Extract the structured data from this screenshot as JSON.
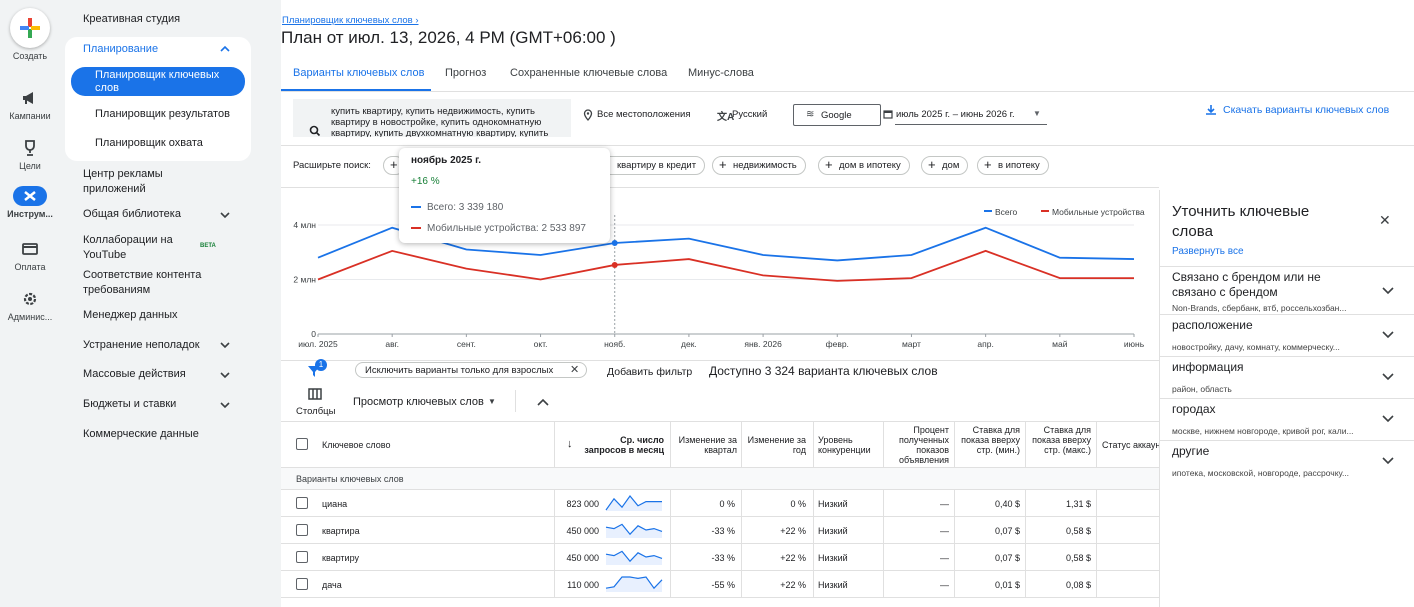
{
  "rail": [
    {
      "label": "Создать",
      "icon": "plus-icon"
    },
    {
      "label": "Кампании",
      "icon": "megaphone-icon"
    },
    {
      "label": "Цели",
      "icon": "trophy-icon"
    },
    {
      "label": "Инструм...",
      "icon": "tools-icon"
    },
    {
      "label": "Оплата",
      "icon": "card-icon"
    },
    {
      "label": "Админис...",
      "icon": "gear-icon"
    }
  ],
  "nav": {
    "creative": "Креативная студия",
    "planning": "Планирование",
    "planner": "Планировщик ключевых слов",
    "results": "Планировщик результатов",
    "reach": "Планировщик охвата",
    "app_center": "Центр рекламы приложений",
    "shared_lib": "Общая библиотека",
    "youtube": "Коллаборации на YouTube",
    "beta": "BETA",
    "compliance": "Соответствие контента требованиям",
    "data_mgr": "Менеджер данных",
    "troubleshoot": "Устранение неполадок",
    "bulk": "Массовые действия",
    "budgets": "Бюджеты и ставки",
    "commercial": "Коммерческие данные"
  },
  "header": {
    "breadcrumb": "Планировщик ключевых слов ›",
    "title": "План от июл. 13, 2026, 4 PM (GMT+06:00 )"
  },
  "tabs": [
    "Варианты ключевых слов",
    "Прогноз",
    "Сохраненные ключевые слова",
    "Минус-слова"
  ],
  "filters": {
    "search_text": "купить квартиру, купить недвижимость, купить квартиру в новостройке, купить однокомнатную квартиру, купить двухкомнатную квартиру, купить",
    "location": "Все местоположения",
    "language": "Русский",
    "network": "Google",
    "dates": "июль 2025 г. – июнь 2026 г.",
    "download": "Скачать варианты ключевых слов"
  },
  "expand": {
    "label": "Расширьте поиск:",
    "pills": [
      "квартиру в кредит",
      "недвижимость",
      "дом в ипотеку",
      "дом",
      "в ипотеку"
    ]
  },
  "tooltip": {
    "month": "ноябрь 2025 г.",
    "change": "+16 %",
    "total": "Всего: 3 339 180",
    "mobile": "Мобильные устройства: 2 533 897"
  },
  "chart_data": {
    "type": "line",
    "categories": [
      "июл. 2025",
      "авг.",
      "сент.",
      "окт.",
      "нояб.",
      "дек.",
      "янв. 2026",
      "февр.",
      "март",
      "апр.",
      "май",
      "июнь"
    ],
    "series": [
      {
        "name": "Всего",
        "color": "#1a73e8",
        "values": [
          2800000,
          3900000,
          3100000,
          2900000,
          3339180,
          3500000,
          2900000,
          2700000,
          2900000,
          3900000,
          2800000,
          2750000
        ]
      },
      {
        "name": "Мобильные устройства",
        "color": "#d93025",
        "values": [
          2000000,
          3050000,
          2400000,
          2000000,
          2533897,
          2750000,
          2150000,
          1950000,
          2050000,
          3050000,
          2050000,
          2050000
        ]
      }
    ],
    "yticks": [
      {
        "v": 0,
        "l": "0"
      },
      {
        "v": 2000000,
        "l": "2 млн"
      },
      {
        "v": 4000000,
        "l": "4 млн"
      }
    ],
    "ylim": [
      0,
      4000000
    ],
    "legend": "top-right",
    "grid": true
  },
  "toolbar": {
    "badge": "1",
    "exclude": "Исключить варианты только для взрослых",
    "add_filter": "Добавить фильтр",
    "available": "Доступно 3 324 варианта ключевых слов",
    "columns": "Столбцы",
    "view": "Просмотр ключевых слов"
  },
  "table": {
    "headers": {
      "keyword": "Ключевое слово",
      "avg": "Ср. число запросов в месяц",
      "q": "Изменение за квартал",
      "y": "Изменение за год",
      "comp": "Уровень конкуренции",
      "share": "Процент полученных показов объявления",
      "bid_low": "Ставка для показа вверху стр. (мин.)",
      "bid_high": "Ставка для показа вверху стр. (макс.)",
      "status": "Статус аккаунта"
    },
    "group": "Варианты ключевых слов",
    "rows": [
      {
        "kw": "циана",
        "avg": "823 000",
        "q": "0 %",
        "y": "0 %",
        "comp": "Низкий",
        "share": "—",
        "low": "0,40 $",
        "high": "1,31 $"
      },
      {
        "kw": "квартира",
        "avg": "450 000",
        "q": "-33 %",
        "y": "+22 %",
        "comp": "Низкий",
        "share": "—",
        "low": "0,07 $",
        "high": "0,58 $"
      },
      {
        "kw": "квартиру",
        "avg": "450 000",
        "q": "-33 %",
        "y": "+22 %",
        "comp": "Низкий",
        "share": "—",
        "low": "0,07 $",
        "high": "0,58 $"
      },
      {
        "kw": "дача",
        "avg": "110 000",
        "q": "-55 %",
        "y": "+22 %",
        "comp": "Низкий",
        "share": "—",
        "low": "0,01 $",
        "high": "0,08 $"
      }
    ]
  },
  "refine": {
    "title": "Уточнить ключевые слова",
    "expand": "Развернуть все",
    "items": [
      {
        "title": "Связано с брендом или не связано с брендом",
        "sub": "Non-Brands, сбербанк, втб, россельхозбан..."
      },
      {
        "title": "расположение",
        "sub": "новостройку, дачу, комнату, коммерческу..."
      },
      {
        "title": "информация",
        "sub": "район, область"
      },
      {
        "title": "городах",
        "sub": "москве, нижнем новгороде, кривой рог, кали..."
      },
      {
        "title": "другие",
        "sub": "ипотека, московской, новгороде, рассрочку..."
      }
    ]
  }
}
